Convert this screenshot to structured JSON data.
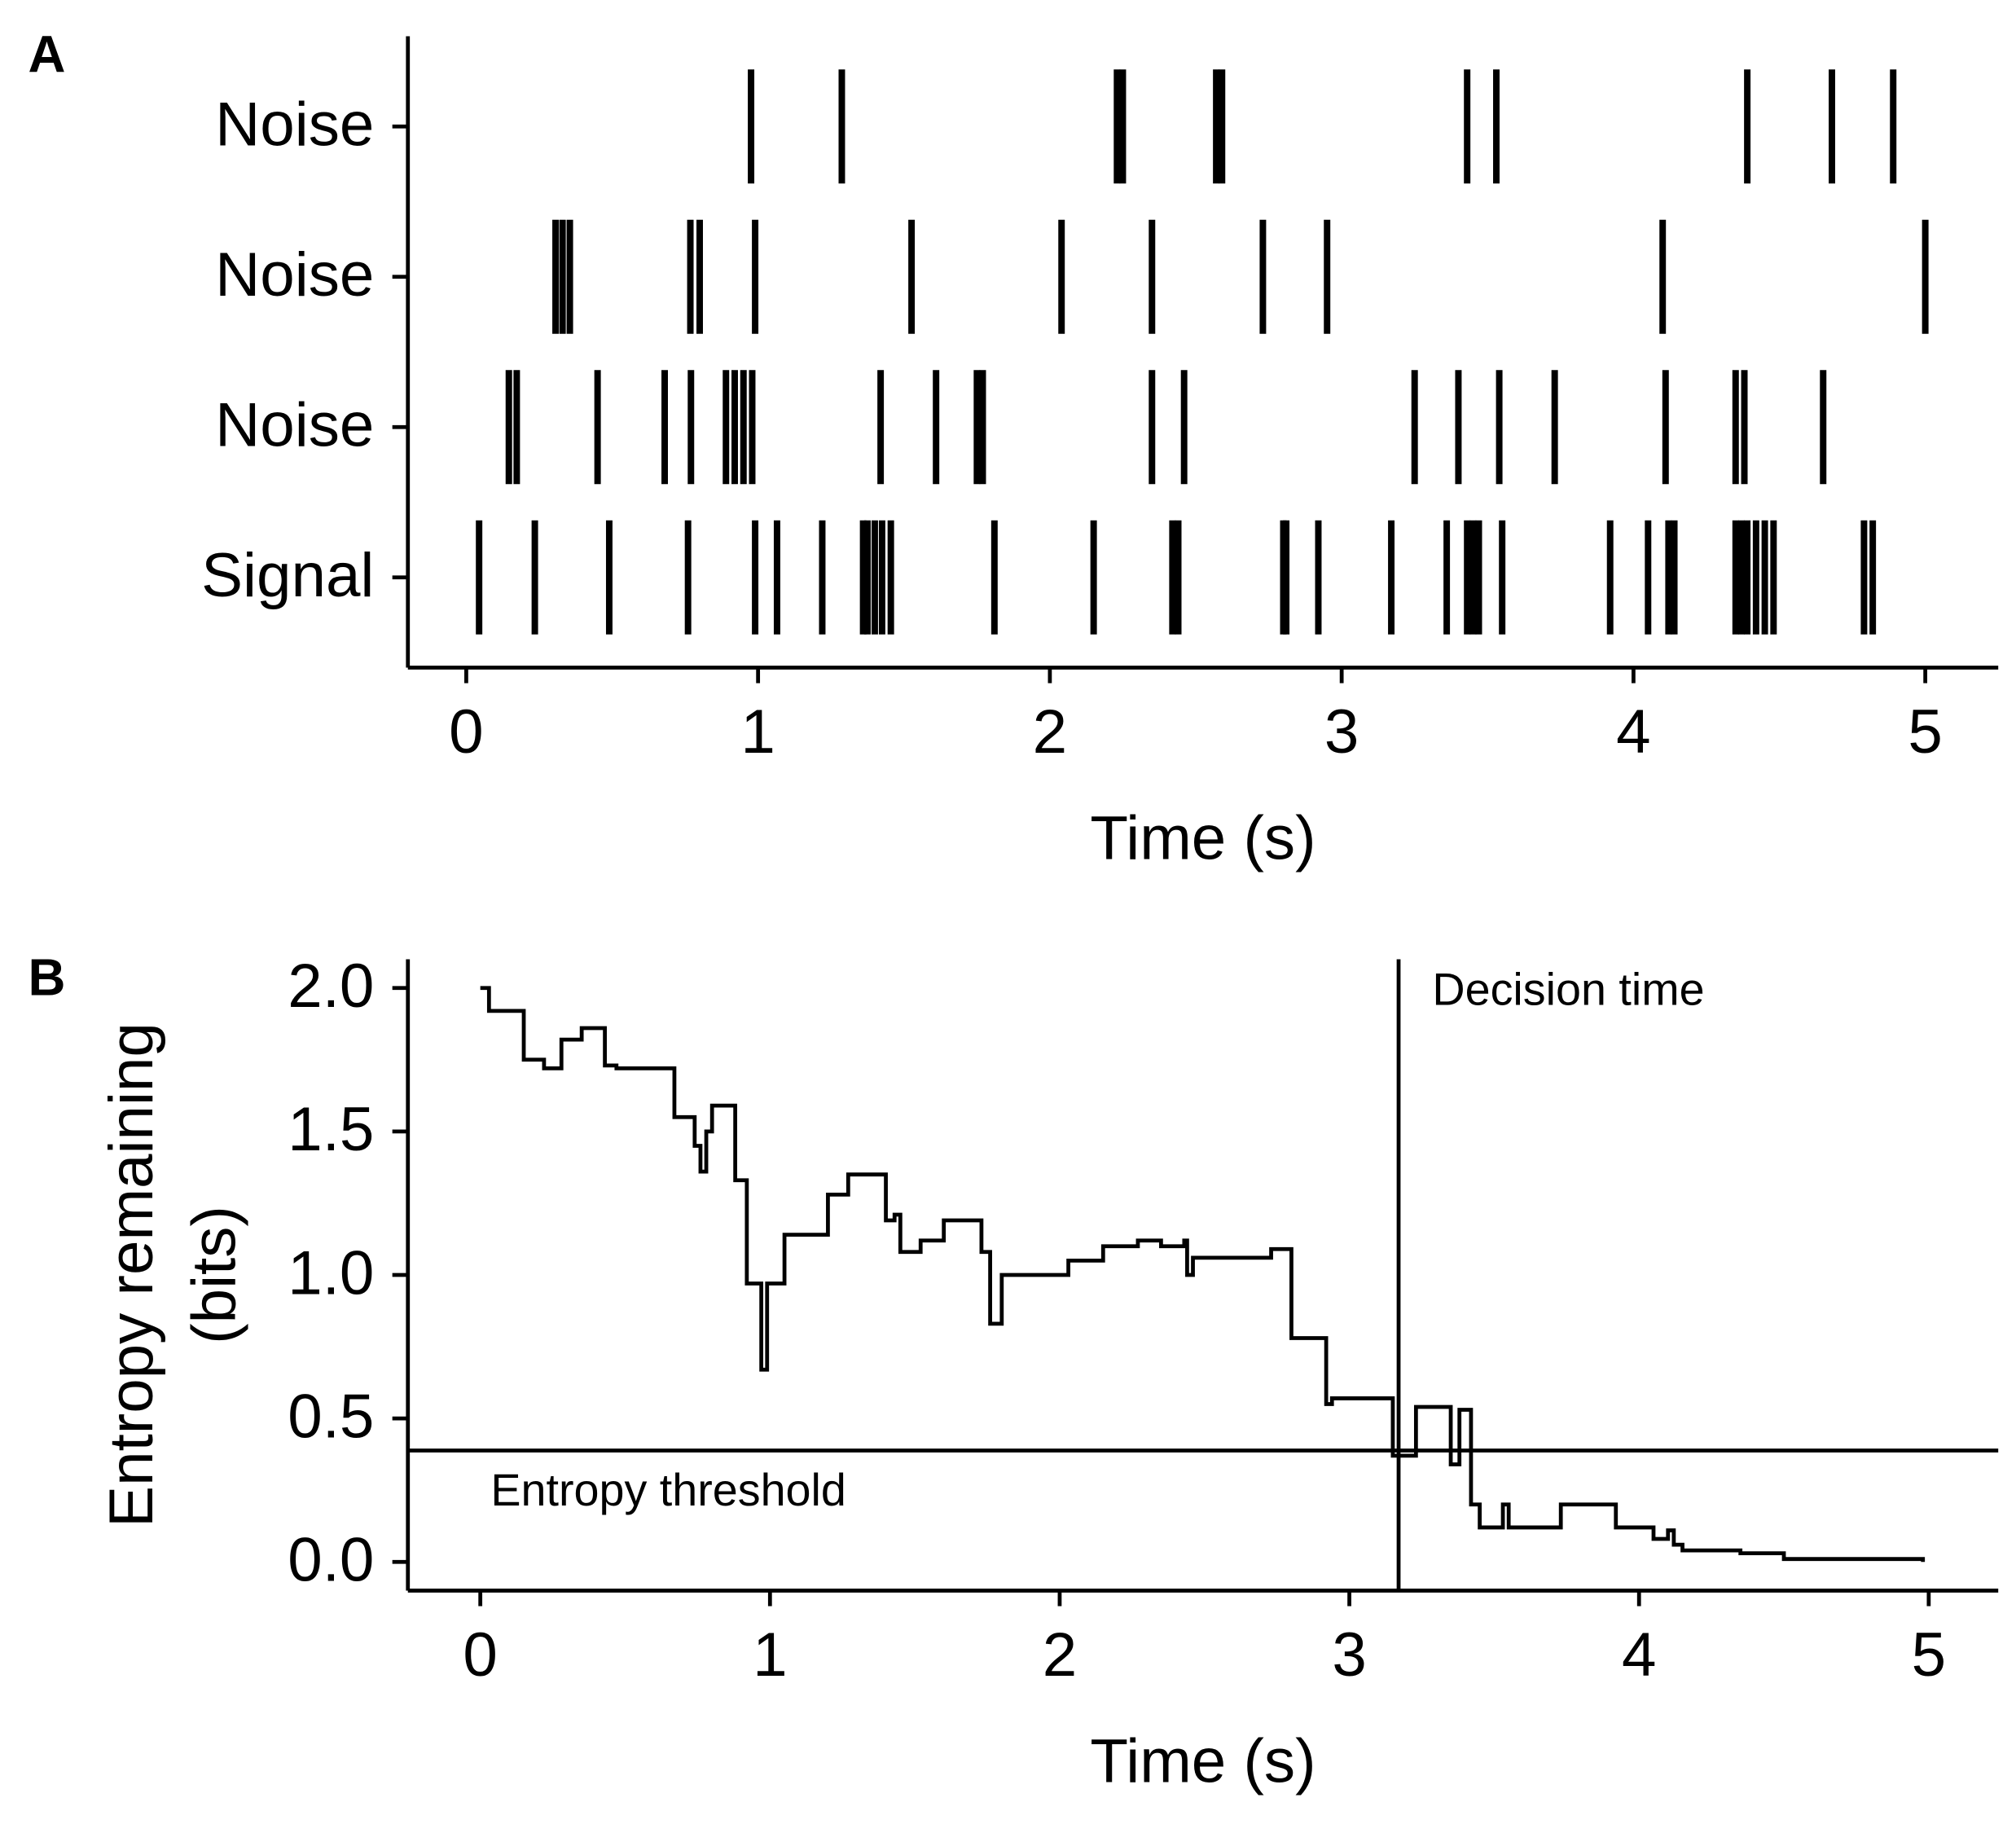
{
  "chart_data": [
    {
      "type": "raster",
      "panel": "A",
      "xlabel": "Time (s)",
      "categories": [
        "Signal",
        "Noise",
        "Noise",
        "Noise"
      ],
      "events": [
        [
          0.044,
          0.235,
          0.49,
          0.76,
          0.99,
          1.065,
          1.22,
          1.36,
          1.375,
          1.4,
          1.425,
          1.455,
          1.81,
          2.15,
          2.42,
          2.44,
          2.8,
          2.81,
          2.92,
          3.17,
          3.36,
          3.43,
          3.45,
          3.47,
          3.55,
          3.92,
          4.05,
          4.12,
          4.14,
          4.35,
          4.37,
          4.39,
          4.42,
          4.45,
          4.48,
          4.79,
          4.82
        ],
        [
          0.146,
          0.173,
          0.45,
          0.68,
          0.77,
          0.89,
          0.92,
          0.95,
          0.98,
          1.42,
          1.61,
          1.75,
          1.77,
          2.35,
          2.46,
          3.25,
          3.4,
          3.54,
          3.73,
          4.11,
          4.35,
          4.38,
          4.65
        ],
        [
          0.306,
          0.33,
          0.355,
          0.768,
          0.8,
          0.99,
          1.526,
          2.04,
          2.35,
          2.73,
          2.95,
          4.1,
          5.0
        ],
        [
          0.976,
          1.287,
          2.23,
          2.25,
          2.57,
          2.59,
          3.43,
          3.53,
          4.39,
          4.68,
          4.89
        ]
      ],
      "color": "#000000",
      "xlim": [
        -0.2,
        5.25
      ],
      "xticks": [
        0,
        1,
        2,
        3,
        4,
        5
      ],
      "ylim": [
        0.4,
        4.6
      ],
      "yticks": [
        1,
        2,
        3,
        4
      ]
    },
    {
      "type": "line",
      "panel": "B",
      "xlabel": "Time (s)",
      "ylabel": [
        "Entropy remaining",
        "(bits)"
      ],
      "step": "post",
      "color": "#000000",
      "x": [
        0,
        0.03,
        0.15,
        0.22,
        0.28,
        0.35,
        0.43,
        0.47,
        0.67,
        0.74,
        0.76,
        0.78,
        0.8,
        0.88,
        0.92,
        0.96,
        0.97,
        0.99,
        1.05,
        1.2,
        1.27,
        1.4,
        1.43,
        1.45,
        1.52,
        1.6,
        1.73,
        1.76,
        1.8,
        2.03,
        2.15,
        2.27,
        2.35,
        2.43,
        2.44,
        2.46,
        2.73,
        2.8,
        2.92,
        2.94,
        3.15,
        3.23,
        3.35,
        3.38,
        3.42,
        3.45,
        3.53,
        3.55,
        3.73,
        3.92,
        4.05,
        4.1,
        4.12,
        4.15,
        4.35,
        4.5,
        4.8,
        4.98
      ],
      "values": [
        2,
        1.92,
        1.75,
        1.72,
        1.82,
        1.86,
        1.73,
        1.72,
        1.55,
        1.45,
        1.36,
        1.5,
        1.59,
        1.33,
        0.97,
        0.97,
        0.67,
        0.97,
        1.14,
        1.28,
        1.35,
        1.19,
        1.21,
        1.08,
        1.12,
        1.19,
        1.08,
        0.83,
        1,
        1.05,
        1.1,
        1.12,
        1.1,
        1.12,
        1.0,
        1.06,
        1.09,
        0.78,
        0.55,
        0.57,
        0.37,
        0.54,
        0.34,
        0.53,
        0.2,
        0.12,
        0.2,
        0.12,
        0.2,
        0.12,
        0.08,
        0.11,
        0.06,
        0.04,
        0.03,
        0.01,
        0.01,
        0
      ],
      "annotations": [
        {
          "text": "Entropy threshold",
          "y": 0.388
        },
        {
          "text": "Decision time",
          "x": 3.17
        }
      ],
      "xlim": [
        -0.25,
        5.24
      ],
      "xticks": [
        0,
        1,
        2,
        3,
        4,
        5
      ],
      "ylim": [
        -0.1,
        2.1
      ],
      "yticks": [
        {
          "value": 0,
          "label": "0.0"
        },
        {
          "value": 0.5,
          "label": "0.5"
        },
        {
          "value": 1,
          "label": "1.0"
        },
        {
          "value": 1.5,
          "label": "1.5"
        },
        {
          "value": 2,
          "label": "2.0"
        }
      ]
    }
  ]
}
